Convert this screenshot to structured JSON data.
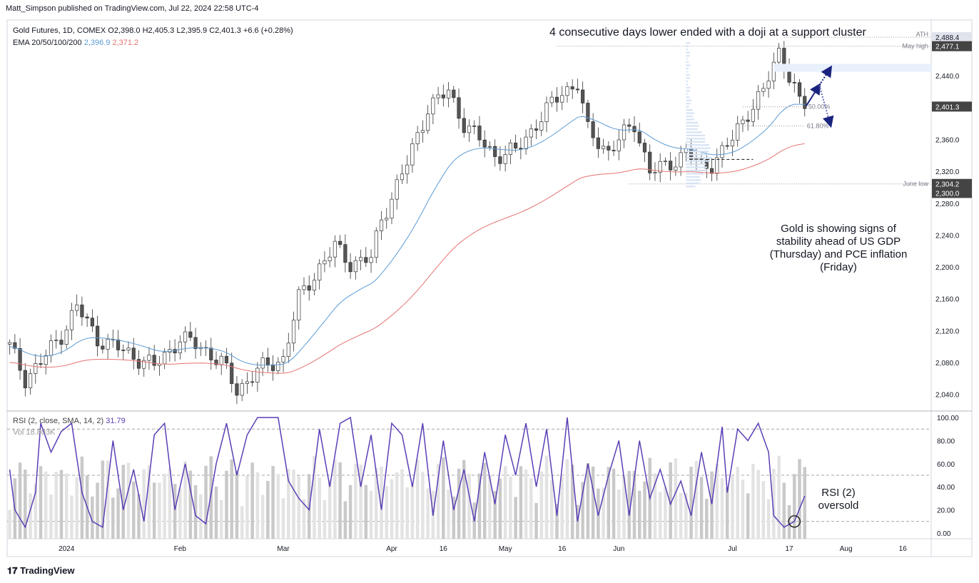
{
  "header": {
    "publisher": "Matt_Simpson published on TradingView.com, Jul 22, 2024 22:58 UTC-4"
  },
  "legend": {
    "symbol": "Gold Futures, 1D, COMEX",
    "o": "O2,398.0",
    "h": "H2,405.3",
    "l": "L2,395.9",
    "c": "C2,401.3",
    "chg": "+6.6 (+0.28%)",
    "ema_label": "EMA 20/50/100/200",
    "ema20": "2,396.9",
    "ema50": "2,371.2"
  },
  "rsi_legend": {
    "label": "RSI (2, close, SMA, 14, 2)",
    "value": "31.79",
    "vol": "Vol 18.803K"
  },
  "annotations": {
    "top": "4 consecutive days lower ended with a doji at a support cluster",
    "gold_note": "Gold is showing signs of stability ahead of US GDP (Thursday) and PCE inflation (Friday)",
    "rsi_note_1": "RSI (2)",
    "rsi_note_2": "oversold",
    "ath": "ATH",
    "may_high": "May high",
    "june_low": "June low",
    "fib50": "50.00%",
    "fib618": "61.80%"
  },
  "price_badges": [
    "2,488.4",
    "2,477.1",
    "2,401.3",
    "2,304.2",
    "2,300.0"
  ],
  "brand": "TradingView",
  "colors": {
    "ema20": "#5b9bd5",
    "ema50": "#e57373",
    "rsi": "#5b3fb5",
    "arrow": "#1a237e",
    "up": "#ffffff",
    "down": "#555555"
  },
  "chart_data": {
    "type": "candlestick",
    "price_axis": {
      "ylim": [
        2020,
        2510
      ],
      "ticks": [
        "2,040.0",
        "2,080.0",
        "2,120.0",
        "2,160.0",
        "2,200.0",
        "2,240.0",
        "2,280.0",
        "2,320.0",
        "2,360.0",
        "2,400.0",
        "2,440.0",
        "2,480.0"
      ]
    },
    "rsi_axis": {
      "ylim": [
        -5,
        105
      ],
      "ticks": [
        "0.00",
        "20.00",
        "40.00",
        "60.00",
        "80.00",
        "100.00"
      ],
      "levels": [
        10,
        50,
        90
      ]
    },
    "time_axis": {
      "labels": [
        {
          "label": "2024",
          "day": 11
        },
        {
          "label": "Feb",
          "day": 33
        },
        {
          "label": "Mar",
          "day": 53
        },
        {
          "label": "Apr",
          "day": 74
        },
        {
          "label": "16",
          "day": 84
        },
        {
          "label": "May",
          "day": 96
        },
        {
          "label": "16",
          "day": 107
        },
        {
          "label": "Jun",
          "day": 118
        },
        {
          "label": "Jul",
          "day": 140
        },
        {
          "label": "17",
          "day": 151
        },
        {
          "label": "Aug",
          "day": 162
        },
        {
          "label": "16",
          "day": 173
        }
      ],
      "total_slots": 179
    },
    "ohlc_keypoints": [
      {
        "day": 0,
        "price": 2100
      },
      {
        "day": 3,
        "price": 2060
      },
      {
        "day": 6,
        "price": 2080
      },
      {
        "day": 10,
        "price": 2115
      },
      {
        "day": 13,
        "price": 2150
      },
      {
        "day": 17,
        "price": 2110
      },
      {
        "day": 22,
        "price": 2095
      },
      {
        "day": 28,
        "price": 2075
      },
      {
        "day": 33,
        "price": 2110
      },
      {
        "day": 37,
        "price": 2100
      },
      {
        "day": 41,
        "price": 2080
      },
      {
        "day": 44,
        "price": 2045
      },
      {
        "day": 48,
        "price": 2070
      },
      {
        "day": 53,
        "price": 2085
      },
      {
        "day": 56,
        "price": 2160
      },
      {
        "day": 60,
        "price": 2200
      },
      {
        "day": 63,
        "price": 2225
      },
      {
        "day": 66,
        "price": 2205
      },
      {
        "day": 70,
        "price": 2210
      },
      {
        "day": 72,
        "price": 2260
      },
      {
        "day": 77,
        "price": 2330
      },
      {
        "day": 81,
        "price": 2400
      },
      {
        "day": 85,
        "price": 2420
      },
      {
        "day": 88,
        "price": 2380
      },
      {
        "day": 91,
        "price": 2360
      },
      {
        "day": 94,
        "price": 2340
      },
      {
        "day": 98,
        "price": 2345
      },
      {
        "day": 102,
        "price": 2380
      },
      {
        "day": 107,
        "price": 2420
      },
      {
        "day": 110,
        "price": 2430
      },
      {
        "day": 112,
        "price": 2370
      },
      {
        "day": 116,
        "price": 2345
      },
      {
        "day": 121,
        "price": 2380
      },
      {
        "day": 124,
        "price": 2320
      },
      {
        "day": 127,
        "price": 2325
      },
      {
        "day": 131,
        "price": 2345
      },
      {
        "day": 134,
        "price": 2325
      },
      {
        "day": 136,
        "price": 2330
      },
      {
        "day": 140,
        "price": 2360
      },
      {
        "day": 143,
        "price": 2395
      },
      {
        "day": 146,
        "price": 2420
      },
      {
        "day": 149,
        "price": 2470
      },
      {
        "day": 150,
        "price": 2458
      },
      {
        "day": 152,
        "price": 2425
      },
      {
        "day": 153,
        "price": 2405
      },
      {
        "day": 154,
        "price": 2401
      }
    ],
    "rsi_keypoints": [
      {
        "day": 0,
        "v": 55
      },
      {
        "day": 1,
        "v": 20
      },
      {
        "day": 3,
        "v": 5
      },
      {
        "day": 5,
        "v": 35
      },
      {
        "day": 6,
        "v": 95
      },
      {
        "day": 8,
        "v": 70
      },
      {
        "day": 10,
        "v": 88
      },
      {
        "day": 12,
        "v": 95
      },
      {
        "day": 14,
        "v": 35
      },
      {
        "day": 16,
        "v": 10
      },
      {
        "day": 18,
        "v": 5
      },
      {
        "day": 20,
        "v": 80
      },
      {
        "day": 22,
        "v": 20
      },
      {
        "day": 24,
        "v": 55
      },
      {
        "day": 26,
        "v": 10
      },
      {
        "day": 28,
        "v": 85
      },
      {
        "day": 30,
        "v": 95
      },
      {
        "day": 32,
        "v": 20
      },
      {
        "day": 34,
        "v": 60
      },
      {
        "day": 36,
        "v": 15
      },
      {
        "day": 38,
        "v": 8
      },
      {
        "day": 40,
        "v": 60
      },
      {
        "day": 42,
        "v": 95
      },
      {
        "day": 44,
        "v": 50
      },
      {
        "day": 46,
        "v": 85
      },
      {
        "day": 48,
        "v": 100
      },
      {
        "day": 52,
        "v": 100
      },
      {
        "day": 54,
        "v": 45
      },
      {
        "day": 56,
        "v": 30
      },
      {
        "day": 58,
        "v": 20
      },
      {
        "day": 60,
        "v": 90
      },
      {
        "day": 62,
        "v": 40
      },
      {
        "day": 64,
        "v": 95
      },
      {
        "day": 66,
        "v": 100
      },
      {
        "day": 68,
        "v": 40
      },
      {
        "day": 70,
        "v": 85
      },
      {
        "day": 72,
        "v": 20
      },
      {
        "day": 74,
        "v": 95
      },
      {
        "day": 76,
        "v": 85
      },
      {
        "day": 78,
        "v": 40
      },
      {
        "day": 80,
        "v": 95
      },
      {
        "day": 82,
        "v": 15
      },
      {
        "day": 84,
        "v": 80
      },
      {
        "day": 86,
        "v": 20
      },
      {
        "day": 88,
        "v": 55
      },
      {
        "day": 90,
        "v": 10
      },
      {
        "day": 92,
        "v": 70
      },
      {
        "day": 94,
        "v": 25
      },
      {
        "day": 96,
        "v": 85
      },
      {
        "day": 98,
        "v": 50
      },
      {
        "day": 100,
        "v": 95
      },
      {
        "day": 102,
        "v": 40
      },
      {
        "day": 104,
        "v": 90
      },
      {
        "day": 106,
        "v": 15
      },
      {
        "day": 108,
        "v": 100
      },
      {
        "day": 110,
        "v": 10
      },
      {
        "day": 112,
        "v": 60
      },
      {
        "day": 114,
        "v": 15
      },
      {
        "day": 116,
        "v": 50
      },
      {
        "day": 118,
        "v": 80
      },
      {
        "day": 120,
        "v": 15
      },
      {
        "day": 122,
        "v": 80
      },
      {
        "day": 124,
        "v": 30
      },
      {
        "day": 126,
        "v": 55
      },
      {
        "day": 128,
        "v": 25
      },
      {
        "day": 130,
        "v": 45
      },
      {
        "day": 132,
        "v": 15
      },
      {
        "day": 134,
        "v": 70
      },
      {
        "day": 136,
        "v": 25
      },
      {
        "day": 138,
        "v": 92
      },
      {
        "day": 139,
        "v": 35
      },
      {
        "day": 141,
        "v": 90
      },
      {
        "day": 143,
        "v": 80
      },
      {
        "day": 145,
        "v": 95
      },
      {
        "day": 147,
        "v": 70
      },
      {
        "day": 148,
        "v": 15
      },
      {
        "day": 150,
        "v": 5
      },
      {
        "day": 152,
        "v": 10
      },
      {
        "day": 154,
        "v": 32
      }
    ],
    "lines": {
      "ath": 2488.4,
      "may_high": 2477.1,
      "june_low": 2304.2,
      "support": 2335,
      "fib50": 2401,
      "fib618": 2377
    }
  }
}
